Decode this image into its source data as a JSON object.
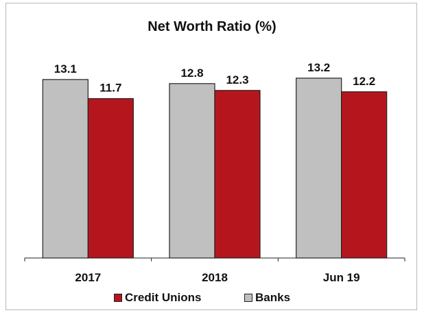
{
  "chart_data": {
    "type": "bar",
    "title": "Net Worth Ratio (%)",
    "categories": [
      "2017",
      "2018",
      "Jun 19"
    ],
    "series": [
      {
        "name": "Banks",
        "values": [
          13.1,
          12.8,
          13.2
        ],
        "color": "#c0c0c0"
      },
      {
        "name": "Credit Unions",
        "values": [
          11.7,
          12.3,
          12.2
        ],
        "color": "#b5161d"
      }
    ],
    "xlabel": "",
    "ylabel": "",
    "ylim": [
      0,
      13.9
    ],
    "grid": false,
    "legend": "bottom",
    "legend_order": [
      "Credit Unions",
      "Banks"
    ]
  }
}
